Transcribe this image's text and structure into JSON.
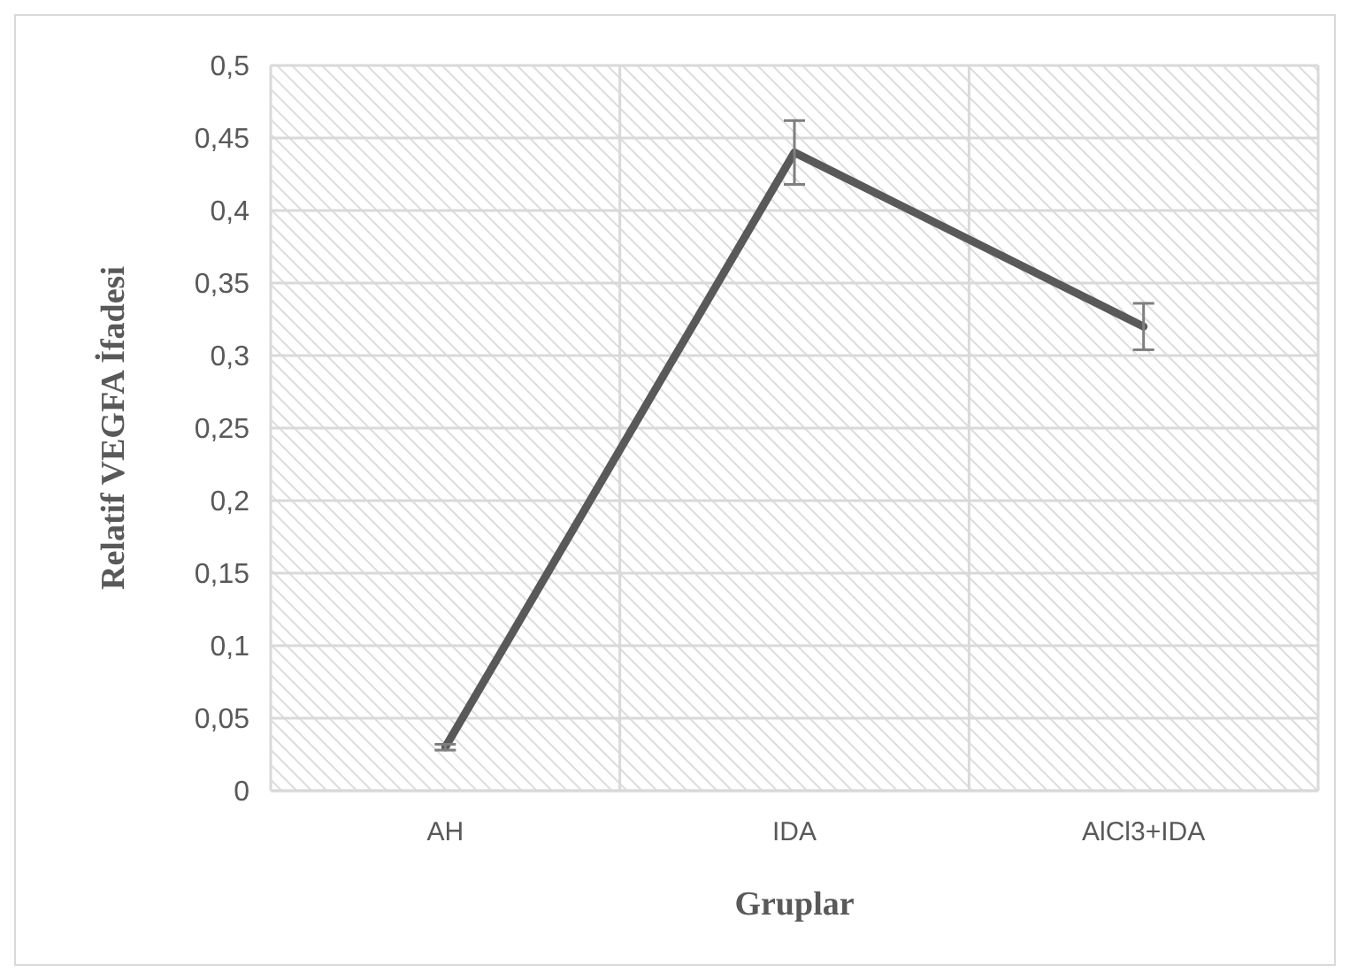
{
  "chart_data": {
    "type": "line",
    "xlabel": "Gruplar",
    "ylabel": "Relatif VEGFA İfadesi",
    "categories": [
      "AH",
      "IDA",
      "AlCl3+IDA"
    ],
    "series": [
      {
        "color": "#595959",
        "values": [
          0.03,
          0.44,
          0.32
        ],
        "errors": [
          0.002,
          0.022,
          0.016
        ]
      }
    ],
    "ylim": [
      0,
      0.5
    ],
    "yticks": [
      {
        "value": 0,
        "label": "0"
      },
      {
        "value": 0.05,
        "label": "0,05"
      },
      {
        "value": 0.1,
        "label": "0,1"
      },
      {
        "value": 0.15,
        "label": "0,15"
      },
      {
        "value": 0.2,
        "label": "0,2"
      },
      {
        "value": 0.25,
        "label": "0,25"
      },
      {
        "value": 0.3,
        "label": "0,3"
      },
      {
        "value": 0.35,
        "label": "0,35"
      },
      {
        "value": 0.4,
        "label": "0,4"
      },
      {
        "value": 0.45,
        "label": "0,45"
      },
      {
        "value": 0.5,
        "label": "0,5"
      }
    ],
    "grid": true,
    "marker": "none",
    "line_style": "solid"
  }
}
